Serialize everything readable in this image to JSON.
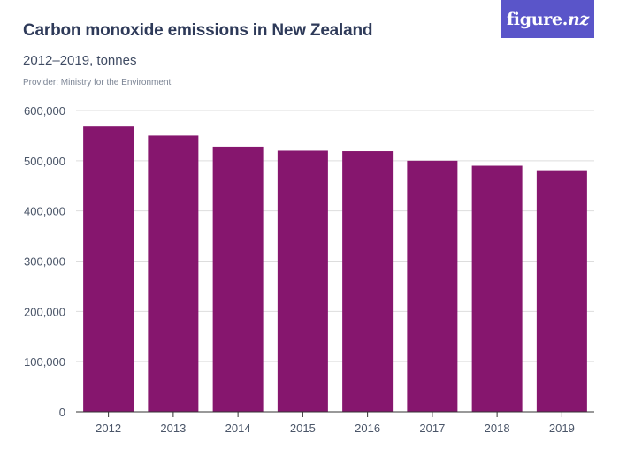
{
  "title": "Carbon monoxide emissions in New Zealand",
  "subtitle": "2012–2019, tonnes",
  "provider": "Provider: Ministry for the Environment",
  "logo": {
    "main": "figure.",
    "suffix": "nz",
    "color": "#5a55c9"
  },
  "colors": {
    "bar": "#86166e",
    "grid": "#dddddd",
    "axis": "#333333",
    "tick_text": "#4a5568"
  },
  "chart_data": {
    "type": "bar",
    "categories": [
      "2012",
      "2013",
      "2014",
      "2015",
      "2016",
      "2017",
      "2018",
      "2019"
    ],
    "values": [
      568000,
      550000,
      528000,
      520000,
      519000,
      500000,
      490000,
      481000
    ],
    "ylim": [
      0,
      600000
    ],
    "yticks": [
      0,
      100000,
      200000,
      300000,
      400000,
      500000,
      600000
    ],
    "ytick_labels": [
      "0",
      "100,000",
      "200,000",
      "300,000",
      "400,000",
      "500,000",
      "600,000"
    ],
    "xlabel": "",
    "ylabel": "",
    "grid": true
  }
}
